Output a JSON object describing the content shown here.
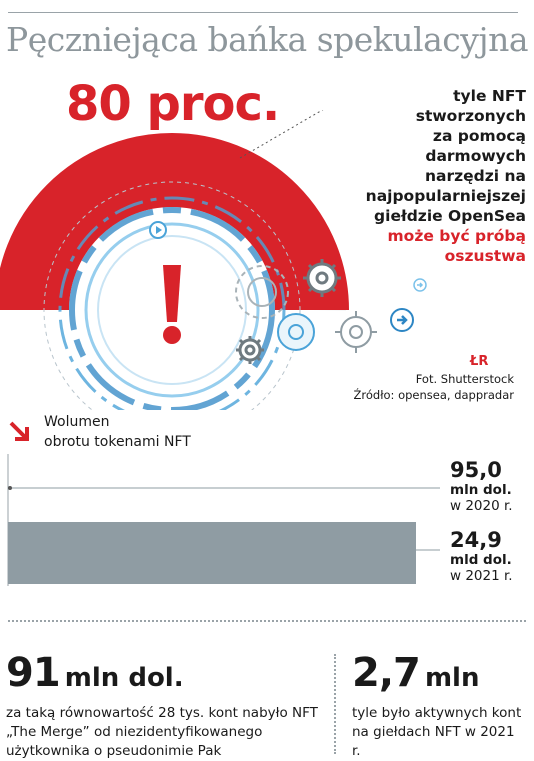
{
  "title": "Pęczniejąca bańka spekulacyjna",
  "headline_stat": {
    "value": "80 proc.",
    "note_lines": [
      "tyle NFT",
      "stworzonych",
      "za pomocą",
      "darmowych",
      "narzędzi na",
      "najpopularniejszej",
      "giełdzie OpenSea"
    ],
    "note_emphasis_lines": [
      "może być próbą",
      "oszustwa"
    ],
    "percent_shown": 80
  },
  "credits": {
    "logo": "ŁR",
    "photo": "Fot. Shutterstock",
    "source": "Źródło: opensea, dappradar"
  },
  "colors": {
    "accent_red": "#d8232a",
    "bar_gray": "#8f9ca3",
    "title_gray": "#8e979c"
  },
  "chart_data": {
    "type": "bar",
    "orientation": "horizontal",
    "title": "Wolumen obrotu tokenami NFT",
    "title_lines": [
      "Wolumen",
      "obrotu tokenami NFT"
    ],
    "unit_base": "mln dol.",
    "series": [
      {
        "categories": [
          "2020",
          "2021"
        ],
        "values": [
          95.0,
          24900
        ]
      }
    ],
    "labels": [
      {
        "value": "95,0",
        "unit": "mln dol.",
        "year": "w 2020 r."
      },
      {
        "value": "24,9",
        "unit": "mld dol.",
        "year": "w 2021 r."
      }
    ],
    "xlim": [
      0,
      24900
    ]
  },
  "stats": [
    {
      "number": "91",
      "unit": "mln dol.",
      "text": "za taką równowartość 28 tys. kont nabyło NFT „The Merge” od niezidentyfikowanego użytkownika o pseudonimie Pak"
    },
    {
      "number": "2,7",
      "unit": "mln",
      "text": "tyle było aktywnych kont na giełdach NFT w 2021 r."
    }
  ]
}
